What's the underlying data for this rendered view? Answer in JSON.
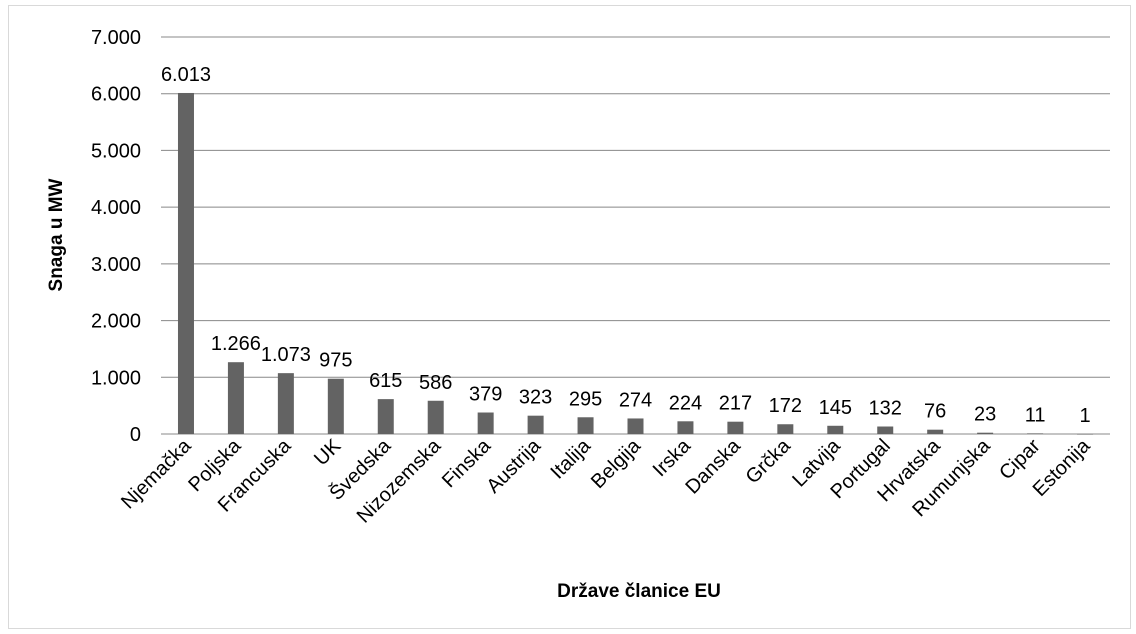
{
  "chart_data": {
    "type": "bar",
    "title": "",
    "xlabel": "Države članice EU",
    "ylabel": "Snaga u MW",
    "categories": [
      "Njemačka",
      "Poljska",
      "Francuska",
      "UK",
      "Švedska",
      "Nizozemska",
      "Finska",
      "Austrija",
      "Italija",
      "Belgija",
      "Irska",
      "Danska",
      "Grčka",
      "Latvija",
      "Portugal",
      "Hrvatska",
      "Rumunjska",
      "Cipar",
      "Estonija"
    ],
    "values": [
      6013,
      1266,
      1073,
      975,
      615,
      586,
      379,
      323,
      295,
      274,
      224,
      217,
      172,
      145,
      132,
      76,
      23,
      11,
      1
    ],
    "value_labels": [
      "6.013",
      "1.266",
      "1.073",
      "975",
      "615",
      "586",
      "379",
      "323",
      "295",
      "274",
      "224",
      "217",
      "172",
      "145",
      "132",
      "76",
      "23",
      "11",
      "1"
    ],
    "y_ticks": [
      0,
      1000,
      2000,
      3000,
      4000,
      5000,
      6000,
      7000
    ],
    "y_tick_labels": [
      "0",
      "1.000",
      "2.000",
      "3.000",
      "4.000",
      "5.000",
      "6.000",
      "7.000"
    ],
    "ylim": [
      0,
      7000
    ],
    "grid": true,
    "legend": "none",
    "bar_color": "#636363",
    "grid_color": "#888888"
  }
}
